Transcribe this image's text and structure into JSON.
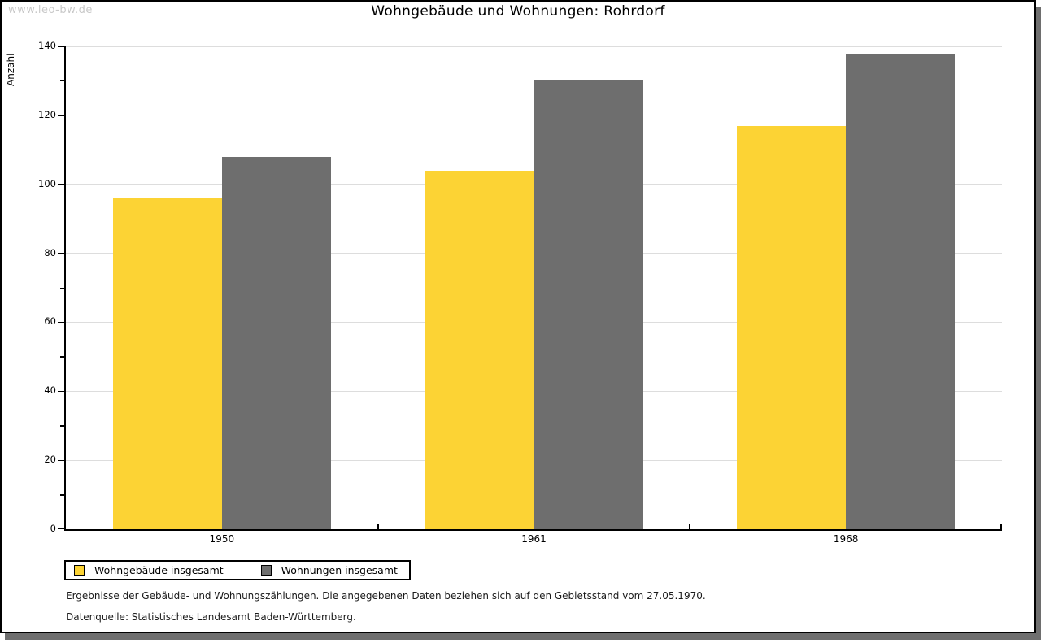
{
  "watermark": "www.leo-bw.de",
  "title": "Wohngebäude und Wohnungen: Rohrdorf",
  "chart_data": {
    "type": "bar",
    "title": "Wohngebäude und Wohnungen: Rohrdorf",
    "categories": [
      "1950",
      "1961",
      "1968"
    ],
    "series": [
      {
        "name": "Wohngebäude insgesamt",
        "color": "#FCD334",
        "values": [
          96,
          104,
          117
        ]
      },
      {
        "name": "Wohnungen insgesamt",
        "color": "#6E6E6E",
        "values": [
          108,
          130,
          138
        ]
      }
    ],
    "xlabel": "",
    "ylabel": "Anzahl",
    "ylim": [
      0,
      140
    ],
    "ytick_step": 20,
    "yminor_step": 10,
    "grid": true,
    "gridline_color": "#dddddd",
    "legend_position": "bottom-left"
  },
  "footnotes": [
    "Ergebnisse der Gebäude- und Wohnungszählungen. Die angegebenen Daten beziehen sich auf den Gebietsstand vom 27.05.1970.",
    "Datenquelle: Statistisches Landesamt Baden-Württemberg."
  ],
  "colors": {
    "bar_yellow": "#FCD334",
    "bar_gray": "#6E6E6E",
    "gridline": "#dddddd",
    "watermark": "#c9c9c9",
    "shadow": "#6e6e6e",
    "axis": "#000000"
  }
}
